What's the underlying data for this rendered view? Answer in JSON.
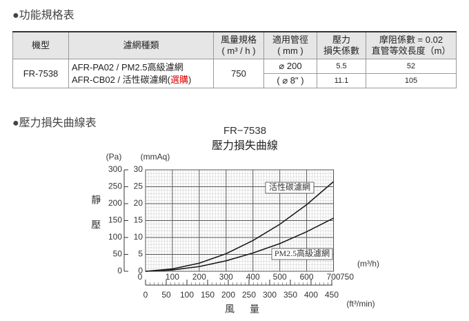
{
  "section1": {
    "heading": "●功能規格表"
  },
  "table": {
    "header": [
      [
        "機型"
      ],
      [
        "濾網種類"
      ],
      [
        "風量規格",
        "( m³ / h )"
      ],
      [
        "適用管徑",
        "( mm )"
      ],
      [
        "壓力",
        "損失係數"
      ],
      [
        "摩阻係數 = 0.02",
        "直管等效長度（m）"
      ]
    ],
    "model": "FR-7538",
    "filters": [
      [
        "AFR-PA02 / PM2.5高級濾網"
      ],
      [
        "AFR-CB02 / 活性碳濾網(",
        "選購",
        ")"
      ]
    ],
    "airflow": 750,
    "pipe": [
      "⌀ 200",
      "( ⌀ 8\" )"
    ],
    "loss_coefficient": [
      5.5,
      11.1
    ],
    "equivalent_length": [
      52,
      105
    ]
  },
  "section2": {
    "heading": "●壓力損失曲線表"
  },
  "chart_data": {
    "type": "line",
    "title": "FR−7538",
    "subtitle": "壓力損失曲線",
    "y_label": "靜壓",
    "x_label": "風量",
    "y_unit": "(mmAq)",
    "y2_unit": "(Pa)",
    "x_unit": "(m³/h)",
    "x2_unit": "(ft³/min)",
    "x": [
      0,
      100,
      200,
      300,
      400,
      500,
      600,
      700
    ],
    "series": [
      {
        "name": "活性碳濾網",
        "color": "#1a1a1a",
        "values": [
          0,
          0.7,
          2.4,
          5.2,
          9.1,
          13.9,
          19.7,
          26.5
        ]
      },
      {
        "name": "PM2.5高級濾網",
        "color": "#1a1a1a",
        "values": [
          0,
          0.4,
          1.4,
          3.1,
          5.4,
          8.2,
          11.7,
          15.7
        ]
      }
    ],
    "xlim": [
      0,
      750
    ],
    "xticks": [
      0,
      100,
      200,
      300,
      400,
      500,
      600,
      700,
      750
    ],
    "ylim": [
      0,
      30
    ],
    "yticks": [
      0,
      5,
      10,
      15,
      20,
      25,
      30
    ],
    "y2lim": [
      0,
      300
    ],
    "y2ticks": [
      0,
      50,
      100,
      150,
      200,
      250,
      300
    ],
    "x2lim": [
      0,
      450
    ],
    "x2ticks": [
      0,
      50,
      100,
      150,
      200,
      250,
      300,
      350,
      400,
      450
    ],
    "grid": true,
    "minor_grid": true
  }
}
